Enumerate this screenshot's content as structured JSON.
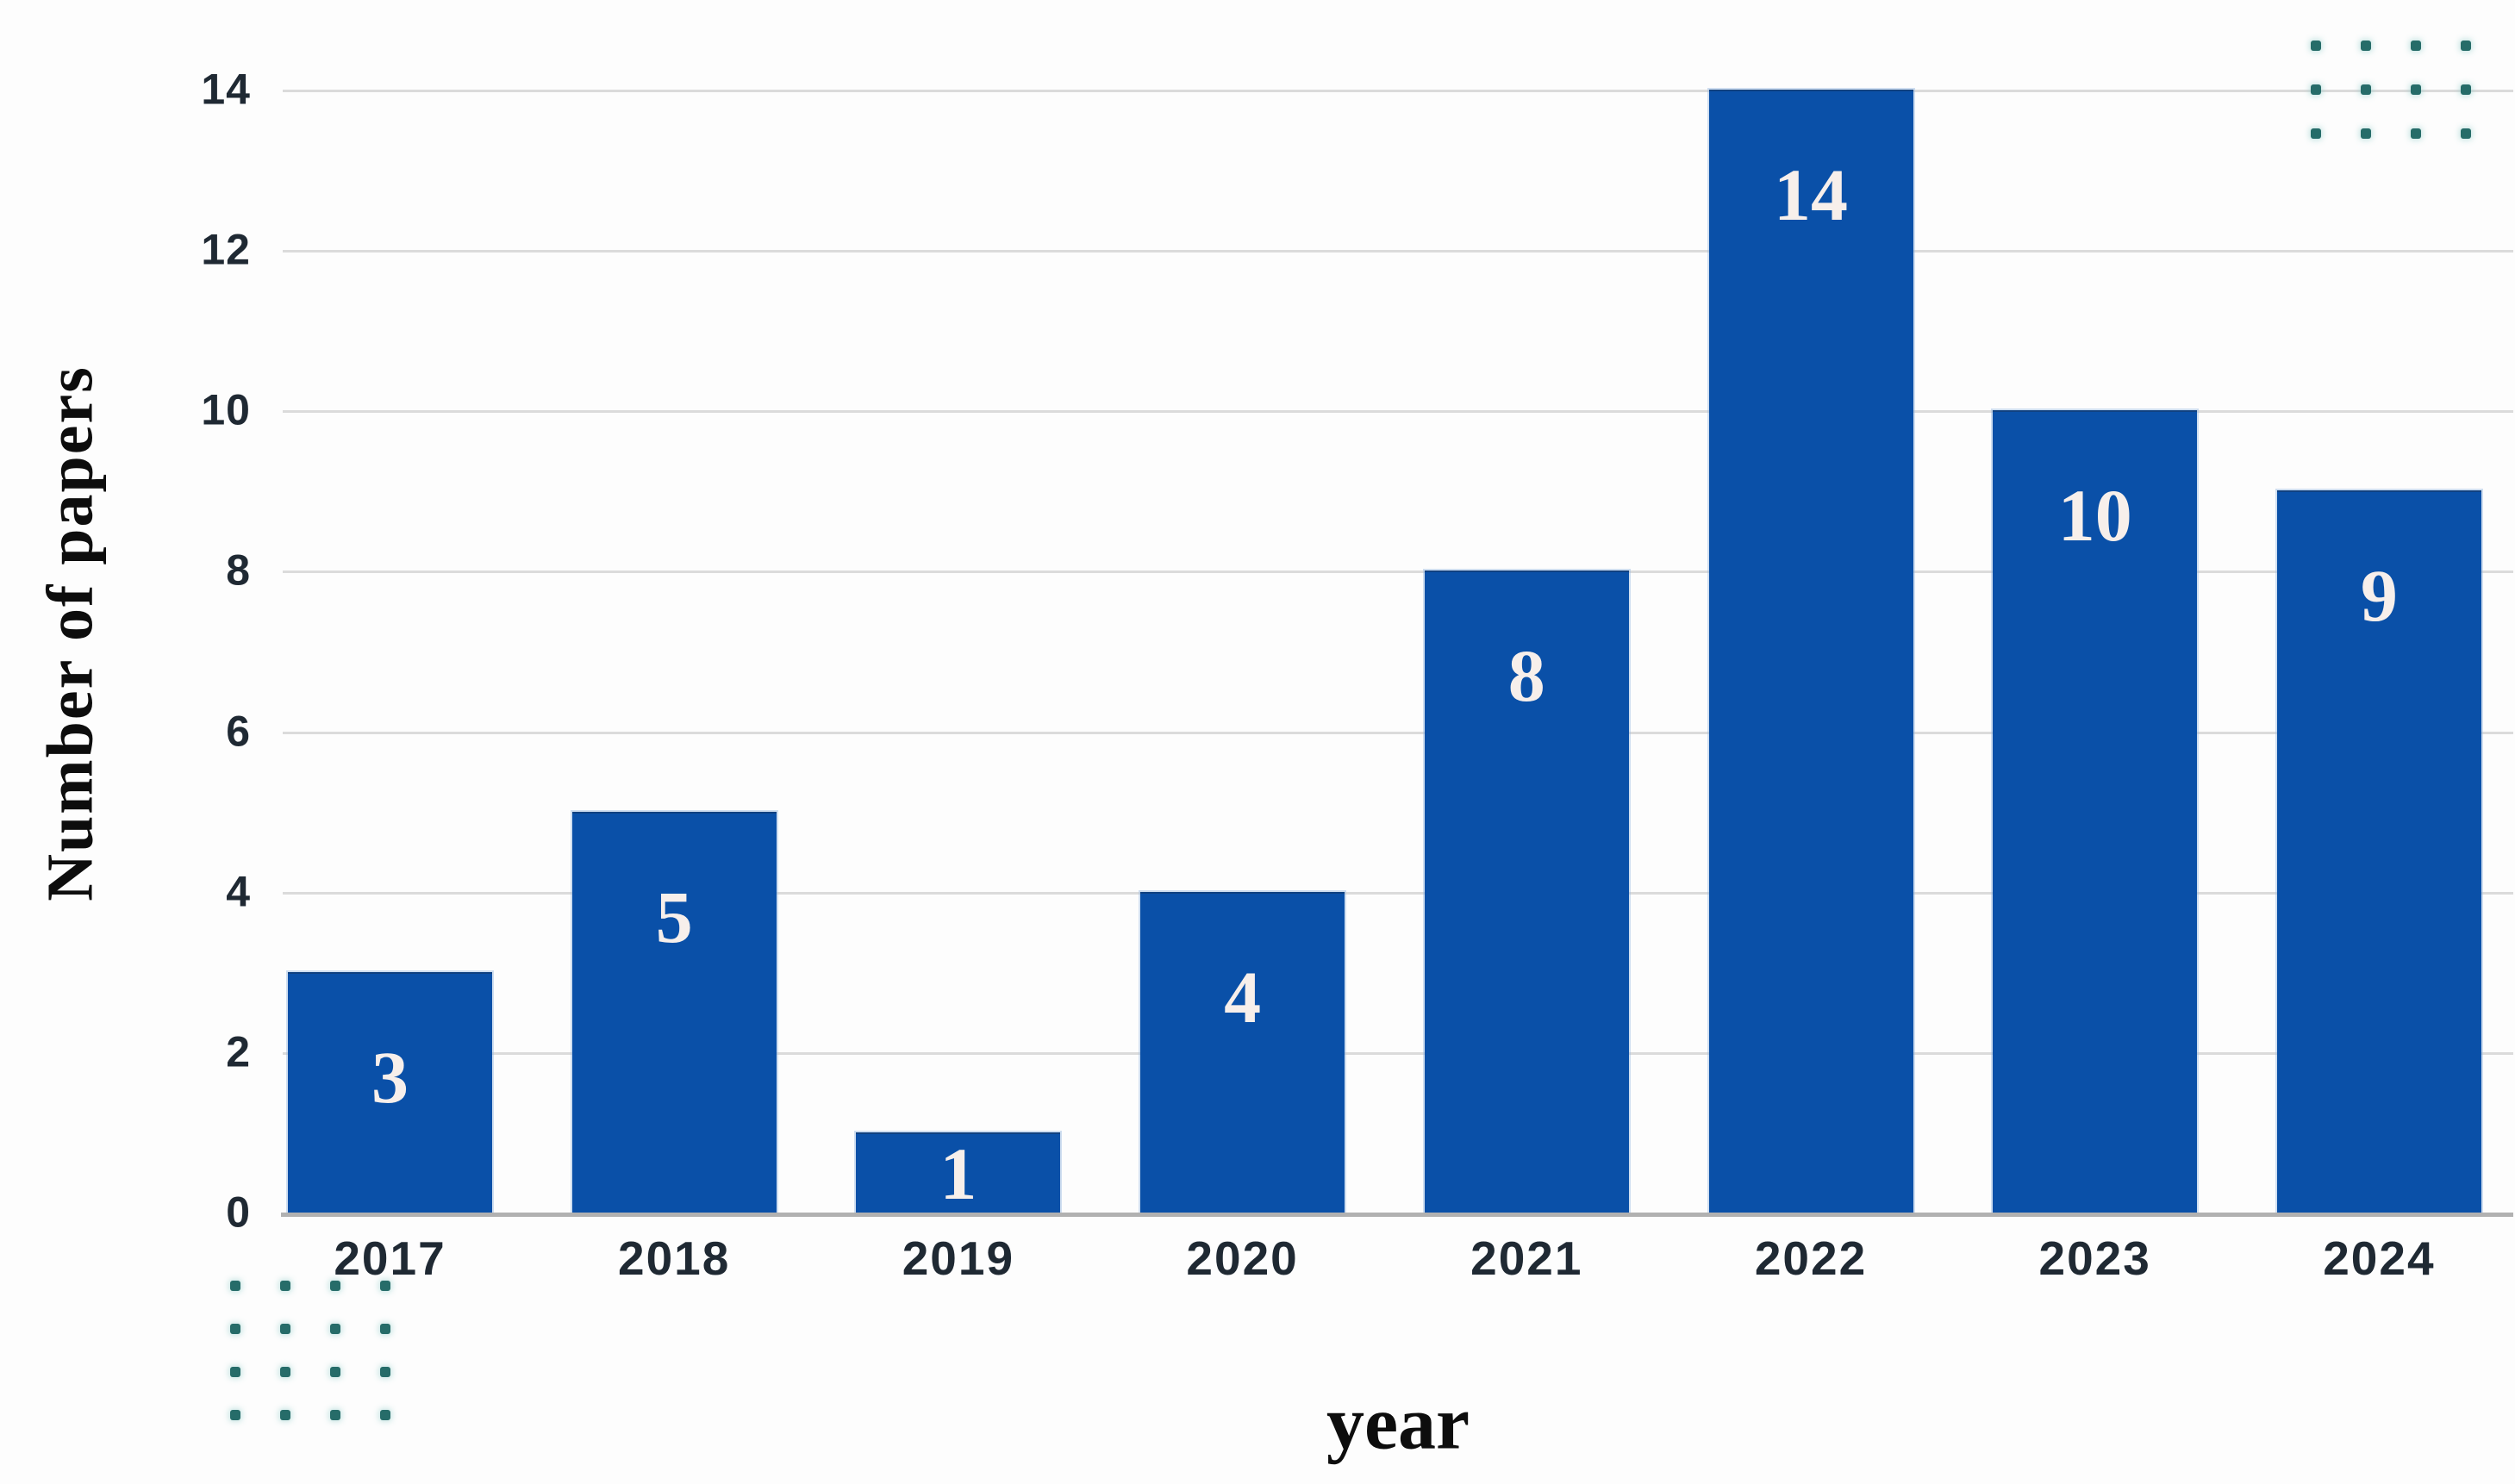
{
  "chart_data": {
    "type": "bar",
    "categories": [
      "2017",
      "2018",
      "2019",
      "2020",
      "2021",
      "2022",
      "2023",
      "2024"
    ],
    "values": [
      3,
      5,
      1,
      4,
      8,
      14,
      10,
      9
    ],
    "bar_value_labels": [
      "3",
      "5",
      "1",
      "4",
      "8",
      "14",
      "10",
      "9"
    ],
    "title": "",
    "xlabel": "year",
    "ylabel": "Number of papers",
    "yticks": [
      0,
      2,
      4,
      6,
      8,
      10,
      12,
      14
    ],
    "ylim": [
      0,
      14.7
    ],
    "grid": true,
    "legend_position": "none",
    "bar_color": "#0a50a8",
    "value_label_color": "#f7efeb",
    "tick_label_color": "#1f2933",
    "gridline_color": "#dbdbdb",
    "baseline_color": "#b1b1b1"
  },
  "decorations": {
    "dot_color": "#266c69",
    "top_right_dots": {
      "rows": 3,
      "cols": 4
    },
    "bottom_left_dots": {
      "rows": 4,
      "cols": 4
    }
  }
}
